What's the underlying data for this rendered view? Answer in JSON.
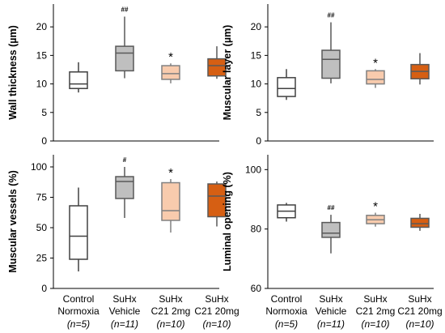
{
  "chart_data": [
    {
      "type": "box",
      "ylabel": "Wall thickness (µm)",
      "ylim": [
        0,
        24
      ],
      "yticks": [
        "0",
        "5",
        "10",
        "15",
        "20"
      ],
      "categories": [
        "Control Normoxia",
        "SuHx Vehicle",
        "SuHx C21 2mg",
        "SuHx C21 20mg"
      ],
      "boxes": [
        {
          "min": 8.5,
          "q1": 9.2,
          "median": 10.0,
          "q3": 12.1,
          "max": 13.8,
          "color": "#ffffff",
          "mark": ""
        },
        {
          "min": 11.0,
          "q1": 12.3,
          "median": 15.4,
          "q3": 16.6,
          "max": 21.8,
          "color": "#bfbfbf",
          "mark": "##"
        },
        {
          "min": 10.1,
          "q1": 10.8,
          "median": 11.8,
          "q3": 13.2,
          "max": 13.6,
          "color": "#f8cbad",
          "mark": "*"
        },
        {
          "min": 10.9,
          "q1": 11.4,
          "median": 13.2,
          "q3": 14.4,
          "max": 16.6,
          "color": "#d65f13",
          "mark": ""
        }
      ]
    },
    {
      "type": "box",
      "ylabel": "Muscular layer (µm)",
      "ylim": [
        0,
        24
      ],
      "yticks": [
        "0",
        "5",
        "10",
        "15",
        "20"
      ],
      "categories": [
        "Control Normoxia",
        "SuHx Vehicle",
        "SuHx C21 2mg",
        "SuHx C21 20mg"
      ],
      "boxes": [
        {
          "min": 7.2,
          "q1": 7.8,
          "median": 9.2,
          "q3": 11.1,
          "max": 12.6,
          "color": "#ffffff",
          "mark": ""
        },
        {
          "min": 10.1,
          "q1": 11.0,
          "median": 14.3,
          "q3": 15.9,
          "max": 20.8,
          "color": "#bfbfbf",
          "mark": "##"
        },
        {
          "min": 9.3,
          "q1": 10.0,
          "median": 10.8,
          "q3": 12.3,
          "max": 12.6,
          "color": "#f8cbad",
          "mark": "*"
        },
        {
          "min": 9.9,
          "q1": 10.9,
          "median": 12.2,
          "q3": 13.4,
          "max": 15.4,
          "color": "#d65f13",
          "mark": ""
        }
      ]
    },
    {
      "type": "box",
      "ylabel": "Muscular vessels (%)",
      "ylim": [
        0,
        110
      ],
      "yticks": [
        "0",
        "25",
        "50",
        "75",
        "100"
      ],
      "categories": [
        "Control Normoxia",
        "SuHx Vehicle",
        "SuHx C21 2mg",
        "SuHx C21 20mg"
      ],
      "boxes": [
        {
          "min": 14,
          "q1": 24,
          "median": 43,
          "q3": 68,
          "max": 83,
          "color": "#ffffff",
          "mark": ""
        },
        {
          "min": 58,
          "q1": 74,
          "median": 88,
          "q3": 92,
          "max": 100,
          "color": "#bfbfbf",
          "mark": "#"
        },
        {
          "min": 46,
          "q1": 56,
          "median": 64,
          "q3": 87,
          "max": 90,
          "color": "#f8cbad",
          "mark": "*"
        },
        {
          "min": 51,
          "q1": 59,
          "median": 76,
          "q3": 86,
          "max": 88,
          "color": "#d65f13",
          "mark": ""
        }
      ]
    },
    {
      "type": "box",
      "ylabel": "Luminal opening (%)",
      "ylim": [
        60,
        105
      ],
      "yticks": [
        "60",
        "80",
        "100"
      ],
      "categories": [
        "Control Normoxia",
        "SuHx Vehicle",
        "SuHx C21 2mg",
        "SuHx C21 20mg"
      ],
      "boxes": [
        {
          "min": 82.5,
          "q1": 83.8,
          "median": 86.0,
          "q3": 88.1,
          "max": 88.8,
          "color": "#ffffff",
          "mark": ""
        },
        {
          "min": 71.8,
          "q1": 77.2,
          "median": 78.6,
          "q3": 82.2,
          "max": 84.8,
          "color": "#bfbfbf",
          "mark": "##"
        },
        {
          "min": 80.8,
          "q1": 81.8,
          "median": 83.1,
          "q3": 84.6,
          "max": 85.5,
          "color": "#f8cbad",
          "mark": "*"
        },
        {
          "min": 79.4,
          "q1": 80.6,
          "median": 81.8,
          "q3": 83.6,
          "max": 85.1,
          "color": "#d65f13",
          "mark": ""
        }
      ]
    }
  ],
  "xaxis": {
    "lines": [
      {
        "line1": "Control",
        "line2": "Normoxia",
        "n": "(n=5)"
      },
      {
        "line1": "SuHx",
        "line2": "Vehicle",
        "n": "(n=11)"
      },
      {
        "line1": "SuHx",
        "line2": "C21 2mg",
        "n": "(n=10)"
      },
      {
        "line1": "SuHx",
        "line2": "C21 20mg",
        "n": "(n=10)"
      }
    ]
  }
}
